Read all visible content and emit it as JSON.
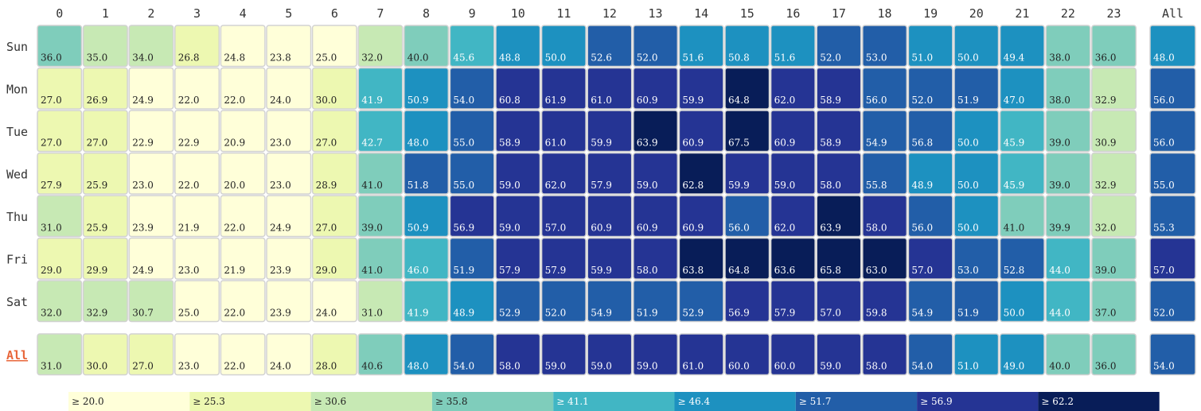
{
  "chart_data": {
    "type": "heatmap",
    "title": "",
    "xlabel": "",
    "ylabel": "",
    "x": [
      "0",
      "1",
      "2",
      "3",
      "4",
      "5",
      "6",
      "7",
      "8",
      "9",
      "10",
      "11",
      "12",
      "13",
      "14",
      "15",
      "16",
      "17",
      "18",
      "19",
      "20",
      "21",
      "22",
      "23"
    ],
    "y": [
      "Sun",
      "Mon",
      "Tue",
      "Wed",
      "Thu",
      "Fri",
      "Sat"
    ],
    "values": [
      [
        36.0,
        35.0,
        34.0,
        26.8,
        24.8,
        23.8,
        25.0,
        32.0,
        40.0,
        45.6,
        48.8,
        50.0,
        52.6,
        52.0,
        51.6,
        50.8,
        51.6,
        52.0,
        53.0,
        51.0,
        50.0,
        49.4,
        38.0,
        36.0
      ],
      [
        27.0,
        26.9,
        24.9,
        22.0,
        22.0,
        24.0,
        30.0,
        41.9,
        50.9,
        54.0,
        60.8,
        61.9,
        61.0,
        60.9,
        59.9,
        64.8,
        62.0,
        58.9,
        56.0,
        52.0,
        51.9,
        47.0,
        38.0,
        32.9
      ],
      [
        27.0,
        27.0,
        22.9,
        22.9,
        20.9,
        23.0,
        27.0,
        42.7,
        48.0,
        55.0,
        58.9,
        61.0,
        59.9,
        63.9,
        60.9,
        67.5,
        60.9,
        58.9,
        54.9,
        56.8,
        50.0,
        45.9,
        39.0,
        30.9
      ],
      [
        27.9,
        25.9,
        23.0,
        22.0,
        20.0,
        23.0,
        28.9,
        41.0,
        51.8,
        55.0,
        59.0,
        62.0,
        57.9,
        59.0,
        62.8,
        59.9,
        59.0,
        58.0,
        55.8,
        48.9,
        50.0,
        45.9,
        39.0,
        32.9
      ],
      [
        31.0,
        25.9,
        23.9,
        21.9,
        22.0,
        24.9,
        27.0,
        39.0,
        50.9,
        56.9,
        59.0,
        57.0,
        60.9,
        60.9,
        60.9,
        56.0,
        62.0,
        63.9,
        58.0,
        56.0,
        50.0,
        41.0,
        39.9,
        32.0
      ],
      [
        29.0,
        29.9,
        24.9,
        23.0,
        21.9,
        23.9,
        29.0,
        41.0,
        46.0,
        51.9,
        57.9,
        57.9,
        59.9,
        58.0,
        63.8,
        64.8,
        63.6,
        65.8,
        63.0,
        57.0,
        53.0,
        52.8,
        44.0,
        39.0
      ],
      [
        32.0,
        32.9,
        30.7,
        25.0,
        22.0,
        23.9,
        24.0,
        31.0,
        41.9,
        48.9,
        52.9,
        52.0,
        54.9,
        51.9,
        52.9,
        56.9,
        57.9,
        57.0,
        59.8,
        54.9,
        51.9,
        50.0,
        44.0,
        37.0
      ]
    ],
    "row_all_label": "All",
    "row_all": [
      48.0,
      56.0,
      56.0,
      55.0,
      55.3,
      57.0,
      52.0
    ],
    "col_all_label": "All",
    "col_all": [
      31.0,
      30.0,
      27.0,
      23.0,
      22.0,
      24.0,
      28.0,
      40.6,
      48.0,
      54.0,
      58.0,
      59.0,
      59.0,
      59.0,
      61.0,
      60.0,
      60.0,
      59.0,
      58.0,
      54.0,
      51.0,
      49.0,
      40.0,
      36.0
    ],
    "grand_all": 54.0,
    "legend": {
      "placement": "bottom",
      "labels": [
        "≥ 20.0",
        "≥ 25.3",
        "≥ 30.6",
        "≥ 35.8",
        "≥ 41.1",
        "≥ 46.4",
        "≥ 51.7",
        "≥ 56.9",
        "≥ 62.2"
      ],
      "thresholds": [
        20.0,
        25.3,
        30.6,
        35.8,
        41.1,
        46.4,
        51.7,
        56.9,
        62.2
      ],
      "colors": [
        "#ffffd9",
        "#edf8b1",
        "#c7e9b4",
        "#7fcdbb",
        "#41b6c4",
        "#1d91c0",
        "#225ea8",
        "#253494",
        "#081d58"
      ]
    }
  }
}
